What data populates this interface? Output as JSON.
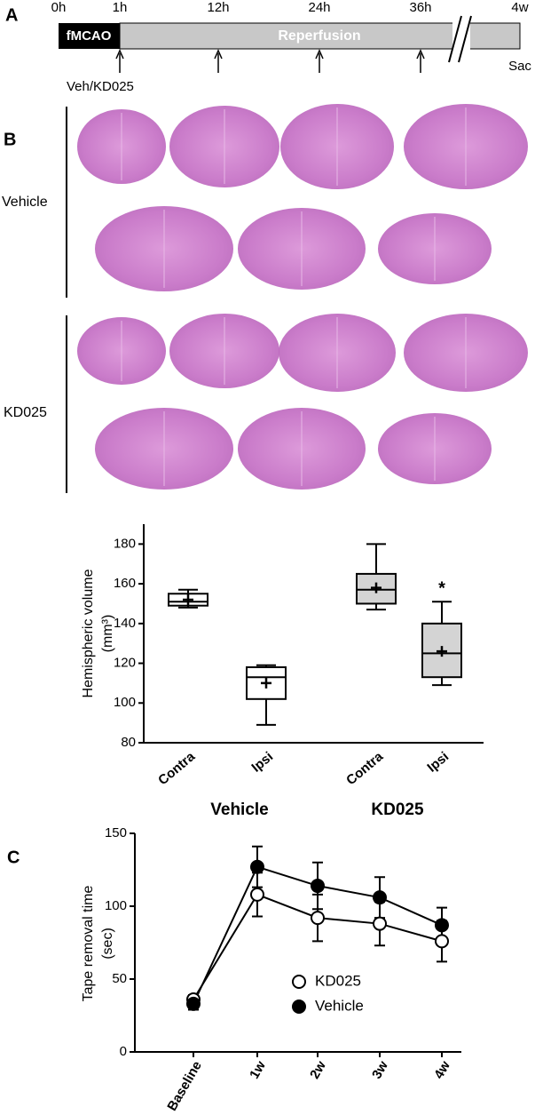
{
  "timeline": {
    "label": "A",
    "ticks": [
      "0h",
      "1h",
      "12h",
      "24h",
      "36h",
      "4w"
    ],
    "phases": [
      "fMCAO",
      "Reperfusion"
    ],
    "treatment": "Veh/KD025",
    "end": "Sac"
  },
  "sections": {
    "label": "B",
    "groups": [
      "Vehicle",
      "KD025"
    ]
  },
  "chart_data": [
    {
      "type": "box",
      "ylabel": [
        "Hemispheric volume",
        "(mm³)"
      ],
      "categories": [
        "Contra",
        "Ipsi",
        "Contra",
        "Ipsi"
      ],
      "groups": [
        "Vehicle",
        "KD025"
      ],
      "boxes": [
        {
          "whisker_low": 148,
          "q1": 149,
          "median": 151,
          "q3": 155,
          "whisker_high": 157,
          "mean": 152
        },
        {
          "whisker_low": 89,
          "q1": 102,
          "median": 113,
          "q3": 118,
          "whisker_high": 119,
          "mean": 110
        },
        {
          "whisker_low": 147,
          "q1": 150,
          "median": 157,
          "q3": 165,
          "whisker_high": 180,
          "mean": 158
        },
        {
          "whisker_low": 109,
          "q1": 113,
          "median": 125,
          "q3": 140,
          "whisker_high": 151,
          "mean": 126
        }
      ],
      "fills": [
        "#ffffff",
        "#ffffff",
        "#d4d4d4",
        "#d4d4d4"
      ],
      "markers": [
        null,
        null,
        null,
        "*"
      ],
      "ylim": [
        80,
        190
      ],
      "yticks": [
        80,
        100,
        120,
        140,
        160,
        180
      ]
    },
    {
      "type": "line",
      "panel_label": "C",
      "ylabel": [
        "Tape removal time",
        "(sec)"
      ],
      "categories": [
        "Baseline",
        "1w",
        "2w",
        "3w",
        "4w"
      ],
      "series": [
        {
          "name": "KD025",
          "color": "#ffffff",
          "values": [
            36,
            108,
            92,
            88,
            76
          ],
          "errors": [
            3,
            15,
            16,
            15,
            14
          ]
        },
        {
          "name": "Vehicle",
          "color": "#000000",
          "values": [
            33,
            127,
            114,
            106,
            87
          ],
          "errors": [
            4,
            14,
            16,
            14,
            12
          ]
        }
      ],
      "ylim": [
        0,
        150
      ],
      "yticks": [
        0,
        50,
        100,
        150
      ]
    }
  ]
}
